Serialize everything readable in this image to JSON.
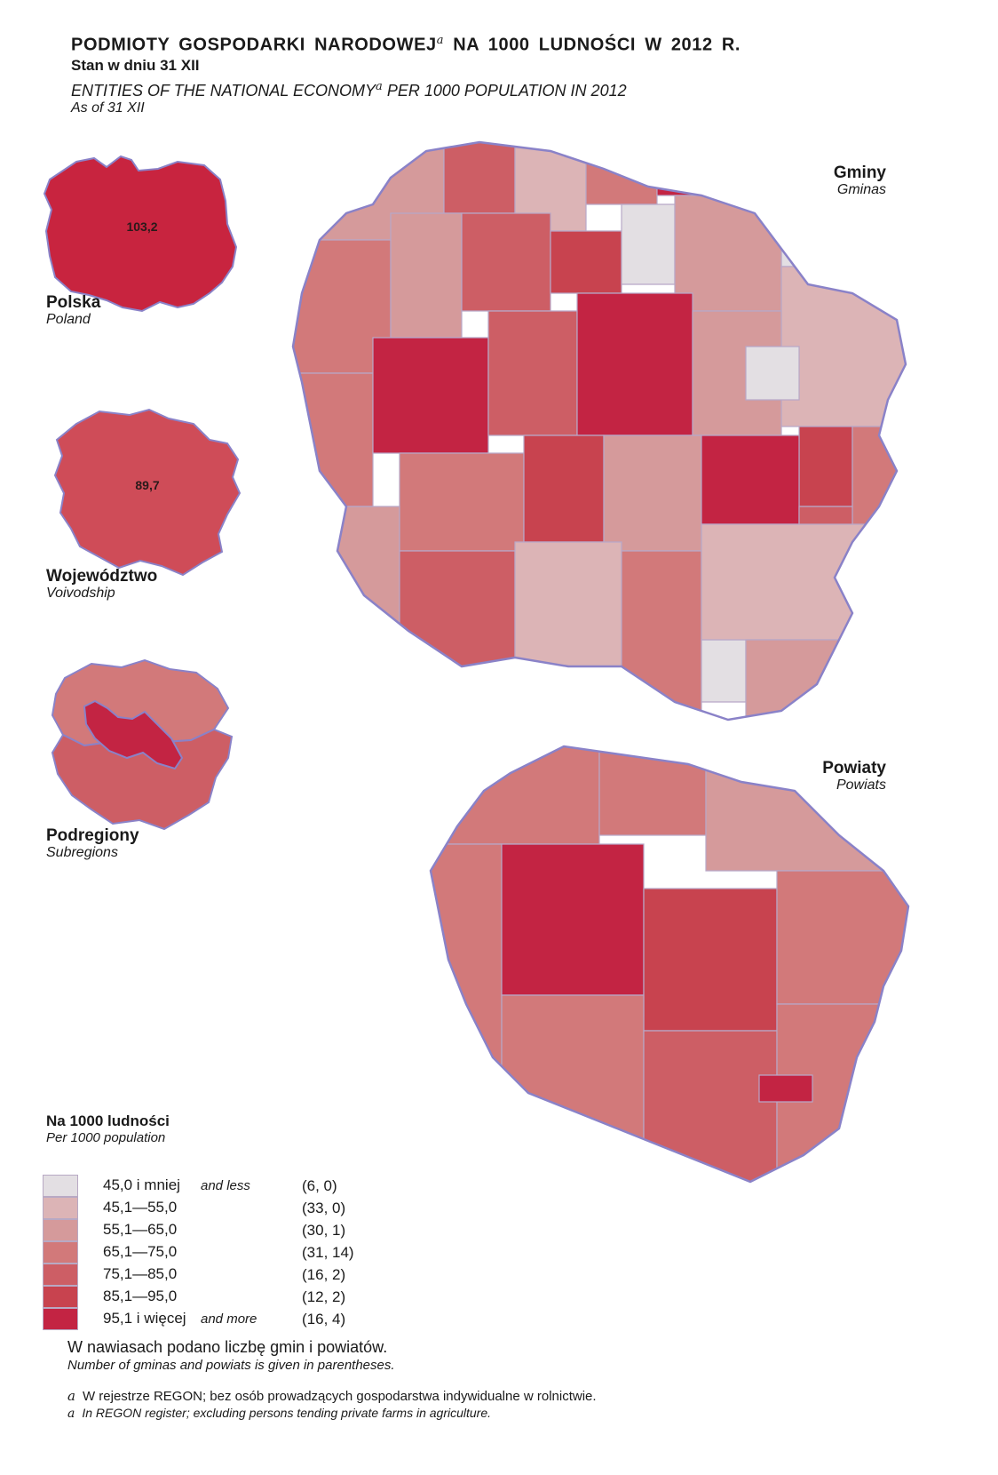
{
  "title": {
    "pl_main": "PODMIOTY GOSPODARKI NARODOWEJ",
    "pl_rest": " NA 1000 LUDNOŚCI W 2012 R.",
    "footnote_mark": "a",
    "pl_subtitle": "Stan w dniu 31 XII",
    "en_main": "ENTITIES OF THE NATIONAL ECONOMY",
    "en_rest": " PER 1000 POPULATION IN 2012",
    "en_subtitle": "As of 31 XII"
  },
  "maps": {
    "poland": {
      "label_pl": "Polska",
      "label_en": "Poland",
      "value": "103,2",
      "color": "#c8243f"
    },
    "voivodship": {
      "label_pl": "Województwo",
      "label_en": "Voivodship",
      "value": "89,7",
      "color": "#cf4c58"
    },
    "subregions": {
      "label_pl": "Podregiony",
      "label_en": "Subregions"
    },
    "gminas": {
      "label_pl": "Gminy",
      "label_en": "Gminas"
    },
    "powiats": {
      "label_pl": "Powiaty",
      "label_en": "Powiats"
    }
  },
  "legend": {
    "title_pl": "Na 1000 ludności",
    "title_en": "Per 1000 population",
    "classes": [
      {
        "range": "45,0 i mniej",
        "range_en": "and less",
        "count": "(6, 0)",
        "color": "#e3dfe3"
      },
      {
        "range": "45,1—55,0",
        "range_en": "",
        "count": "(33, 0)",
        "color": "#dcb4b6"
      },
      {
        "range": "55,1—65,0",
        "range_en": "",
        "count": "(30, 1)",
        "color": "#d59a9b"
      },
      {
        "range": "65,1—75,0",
        "range_en": "",
        "count": "(31, 14)",
        "color": "#d2797a"
      },
      {
        "range": "75,1—85,0",
        "range_en": "",
        "count": "(16, 2)",
        "color": "#cd5e65"
      },
      {
        "range": "85,1—95,0",
        "range_en": "",
        "count": "(12, 2)",
        "color": "#c8434f"
      },
      {
        "range": "95,1 i więcej",
        "range_en": "and more",
        "count": "(16, 4)",
        "color": "#c32443"
      }
    ]
  },
  "notes": {
    "parentheses_pl": "W nawiasach podano liczbę gmin i powiatów.",
    "parentheses_en": "Number of gminas and powiats is given in parentheses."
  },
  "footnote": {
    "mark": "a",
    "pl": "W rejestrze REGON; bez osób prowadzących gospodarstwa indywidualne w rolnictwie.",
    "en": "In REGON register; excluding persons tending private farms in agriculture."
  },
  "colors": {
    "border": "#8a82c8",
    "internal_border": "#b8a8c8"
  }
}
